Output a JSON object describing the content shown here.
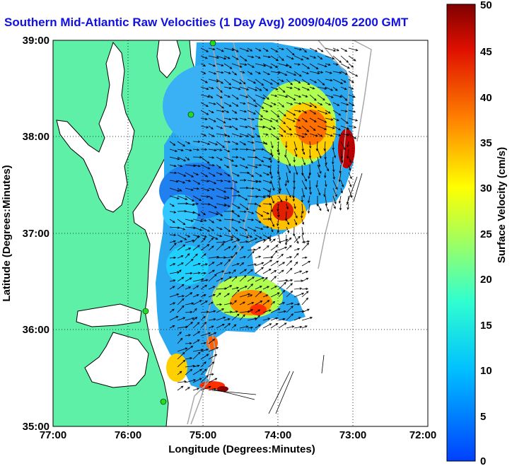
{
  "title": "Southern Mid-Atlantic Raw Velocities (1 Day Avg) 2009/04/05 2200 GMT",
  "map": {
    "x_ticks": [
      "77:00",
      "76:00",
      "75:00",
      "74:00",
      "73:00",
      "72:00"
    ],
    "y_ticks": [
      "39:00",
      "38:00",
      "37:00",
      "36:00",
      "35:00"
    ],
    "xlabel": "Longitude (Degrees:Minutes)",
    "ylabel": "Latitude (Degrees:Minutes)",
    "grid": "dotted",
    "colors": {
      "land": "#5ff0a8",
      "coast": "#000000",
      "bathymetry": "#a8a8a8",
      "station": "#22dd22"
    }
  },
  "colorbar": {
    "label": "Surface Velocity (cm/s)",
    "ticks": [
      "50",
      "45",
      "40",
      "35",
      "30",
      "25",
      "20",
      "15",
      "10",
      "5",
      "0"
    ],
    "min": 0,
    "max": 50,
    "colormap": "jet"
  }
}
